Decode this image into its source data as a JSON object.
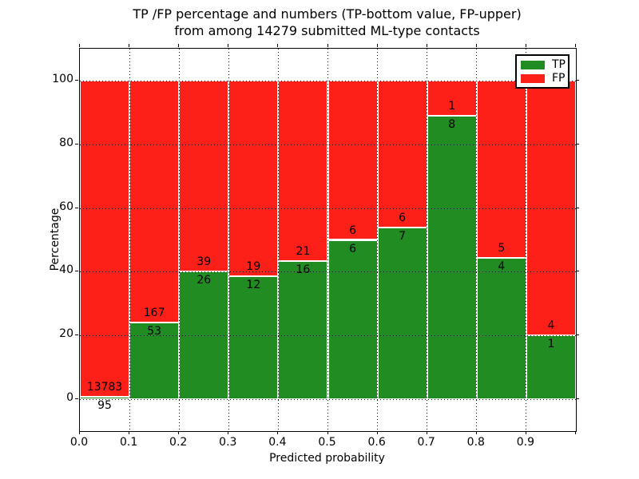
{
  "chart_data": {
    "type": "bar",
    "stacked": true,
    "normalized": "percentage",
    "title_line1": "TP /FP percentage and numbers (TP-bottom value, FP-upper)",
    "title_line2": "from among 14279 submitted ML-type contacts",
    "total_submitted": 14279,
    "xlabel": "Predicted probability",
    "ylabel": "Percentage",
    "xlim": [
      0.0,
      1.0
    ],
    "ylim": [
      -10,
      110
    ],
    "grid": true,
    "x_tick_labels": [
      "0.0",
      "0.1",
      "0.2",
      "0.3",
      "0.4",
      "0.5",
      "0.6",
      "0.7",
      "0.8",
      "0.9"
    ],
    "y_ticks": [
      0,
      20,
      40,
      60,
      80,
      100
    ],
    "bins": [
      {
        "x0": "0.0",
        "x1": "0.1",
        "tp": 95,
        "fp": 13783
      },
      {
        "x0": "0.1",
        "x1": "0.2",
        "tp": 53,
        "fp": 167
      },
      {
        "x0": "0.2",
        "x1": "0.3",
        "tp": 26,
        "fp": 39
      },
      {
        "x0": "0.3",
        "x1": "0.4",
        "tp": 12,
        "fp": 19
      },
      {
        "x0": "0.4",
        "x1": "0.5",
        "tp": 16,
        "fp": 21
      },
      {
        "x0": "0.5",
        "x1": "0.6",
        "tp": 6,
        "fp": 6
      },
      {
        "x0": "0.6",
        "x1": "0.7",
        "tp": 7,
        "fp": 6
      },
      {
        "x0": "0.7",
        "x1": "0.8",
        "tp": 8,
        "fp": 1
      },
      {
        "x0": "0.8",
        "x1": "0.9",
        "tp": 4,
        "fp": 5
      },
      {
        "x0": "0.9",
        "x1": "1.0",
        "tp": 1,
        "fp": 4
      }
    ],
    "legend": {
      "position": "upper right",
      "entries": [
        {
          "label": "TP",
          "color": "#218c21"
        },
        {
          "label": "FP",
          "color": "#fc2019"
        }
      ]
    },
    "colors": {
      "tp": "#218c21",
      "fp": "#fc2019",
      "grid": "#000000",
      "bar_edge": "#ffffff",
      "text": "#000000",
      "background": "#ffffff"
    }
  }
}
